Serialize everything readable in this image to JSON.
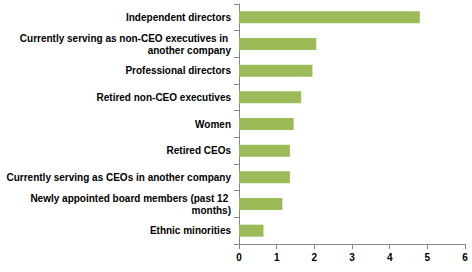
{
  "chart_data": {
    "type": "bar",
    "orientation": "horizontal",
    "categories": [
      "Independent directors",
      "Currently serving as non-CEO executives in another company",
      "Professional directors",
      "Retired non-CEO executives",
      "Women",
      "Retired CEOs",
      "Currently serving as CEOs in another company",
      "Newly appointed board members (past 12 months)",
      "Ethnic minorities"
    ],
    "values": [
      4.8,
      2.05,
      1.95,
      1.65,
      1.45,
      1.35,
      1.35,
      1.15,
      0.65
    ],
    "color": "#9bbb59",
    "xlim": [
      0,
      6
    ],
    "xticks": [
      0,
      1,
      2,
      3,
      4,
      5,
      6
    ],
    "grid": false
  }
}
